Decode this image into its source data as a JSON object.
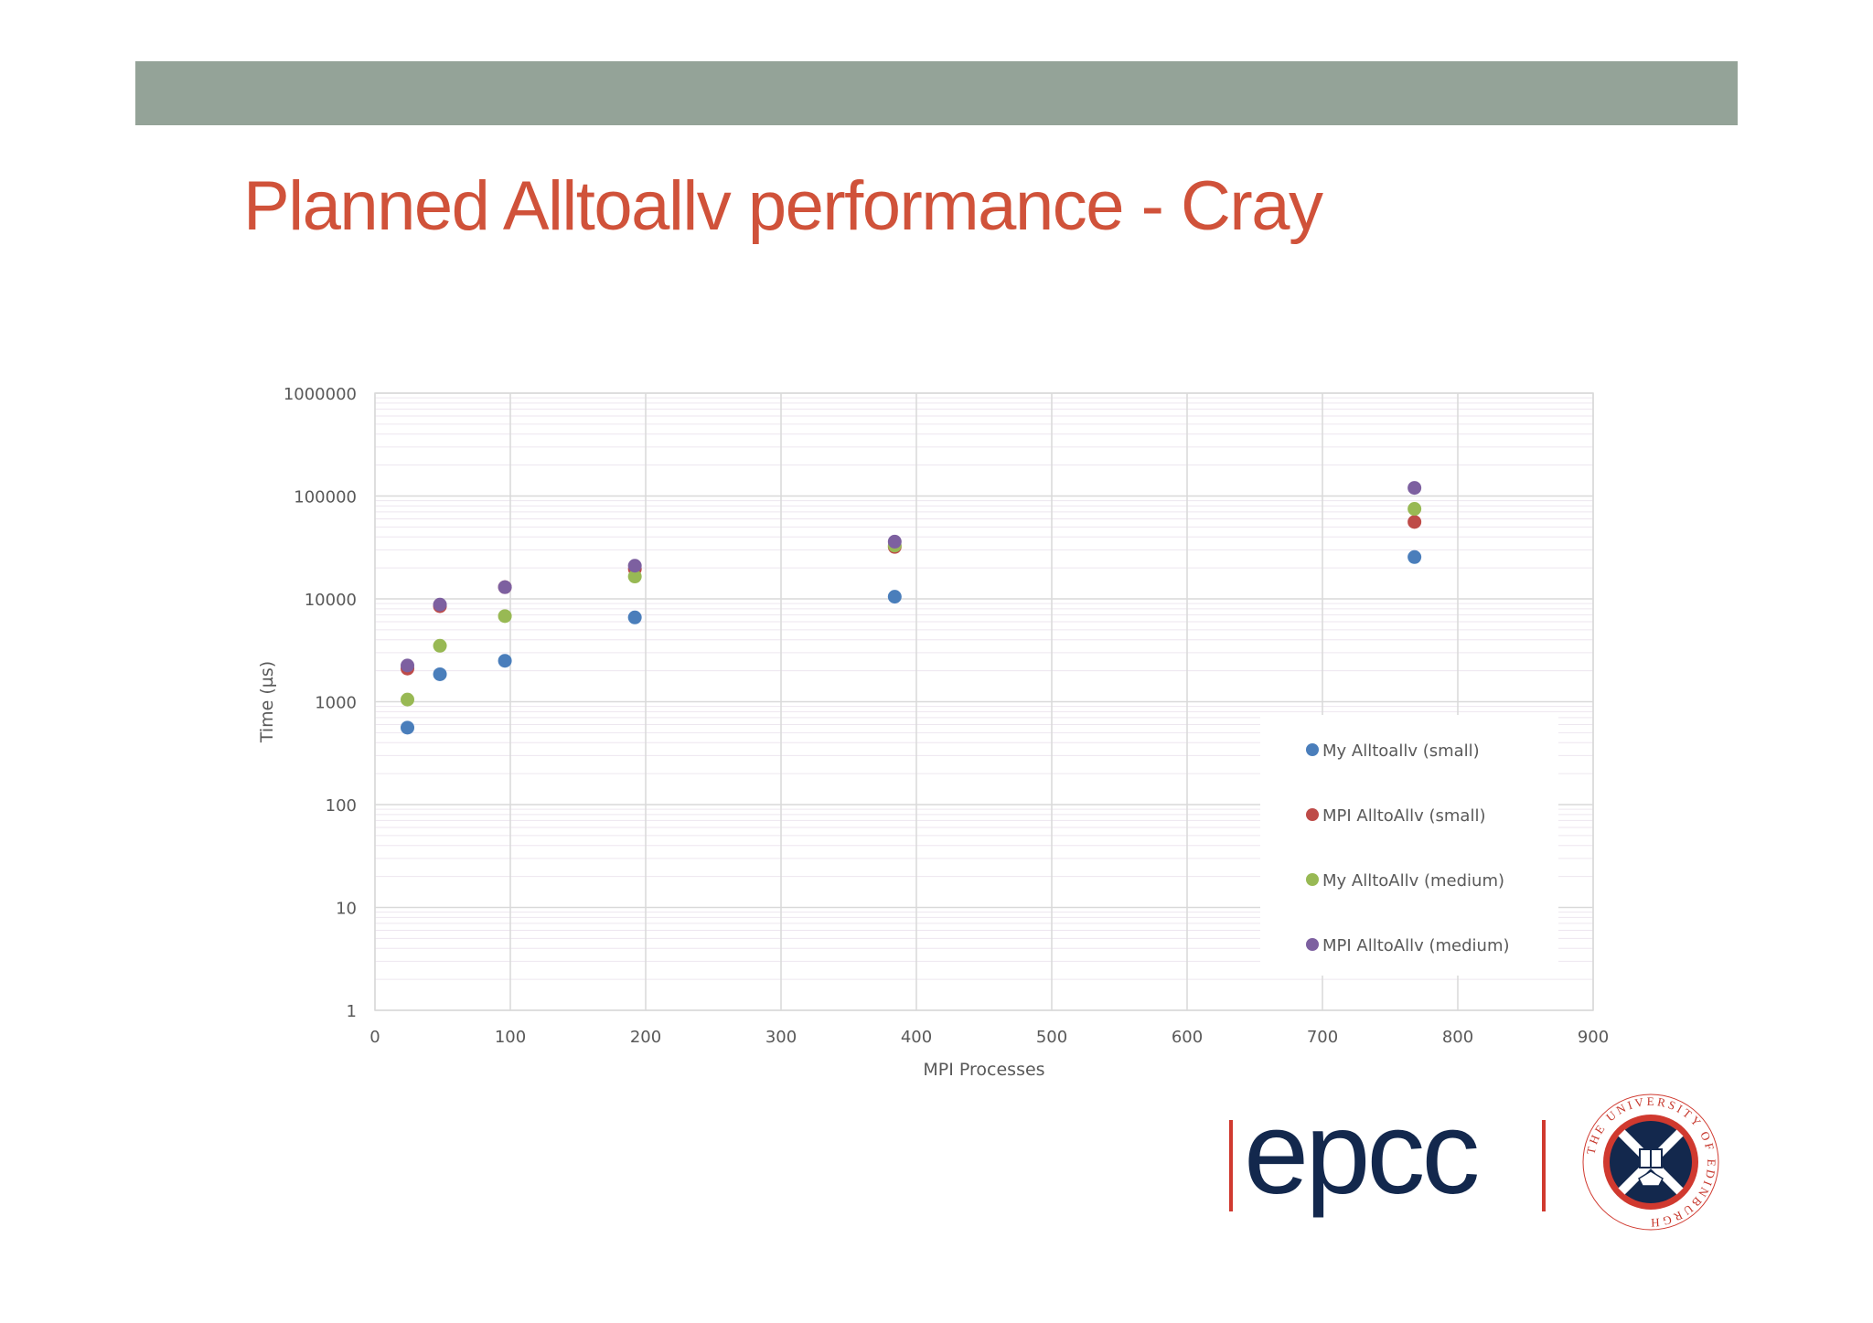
{
  "slide": {
    "title": "Planned Alltoallv performance - Cray",
    "colors": {
      "header_bar": "#94a398",
      "title": "#d0523a"
    }
  },
  "logos": {
    "epcc_text": "epcc",
    "university_seal_text": "THE UNIVERSITY OF EDINBURGH",
    "epcc_color": "#13284d",
    "accent_color": "#d0392f"
  },
  "chart_data": {
    "type": "scatter",
    "xlabel": "MPI Processes",
    "ylabel": "Time (µs)",
    "xlim": [
      0,
      900
    ],
    "ylim": [
      1,
      1000000
    ],
    "yscale": "log",
    "x_ticks": [
      "0",
      "100",
      "200",
      "300",
      "400",
      "500",
      "600",
      "700",
      "800",
      "900"
    ],
    "y_ticks": [
      "1",
      "10",
      "100",
      "1000",
      "10000",
      "100000",
      "1000000"
    ],
    "grid": true,
    "legend_position": "bottom-right",
    "series": [
      {
        "name": "My Alltoallv (small)",
        "color": "#4a7ebb",
        "x": [
          24,
          48,
          96,
          192,
          384,
          768
        ],
        "y": [
          560,
          1850,
          2500,
          6600,
          10500,
          25500
        ]
      },
      {
        "name": "MPI AlltoAllv (small)",
        "color": "#be4b48",
        "x": [
          24,
          48,
          96,
          192,
          384,
          768
        ],
        "y": [
          2100,
          8500,
          13000,
          19500,
          32000,
          56000
        ]
      },
      {
        "name": "My AlltoAllv (medium)",
        "color": "#98b954",
        "x": [
          24,
          48,
          96,
          192,
          384,
          768
        ],
        "y": [
          1050,
          3500,
          6800,
          16500,
          33000,
          75000
        ]
      },
      {
        "name": "MPI AlltoAllv (medium)",
        "color": "#7d60a0",
        "x": [
          24,
          48,
          96,
          192,
          384,
          768
        ],
        "y": [
          2250,
          8800,
          13000,
          21000,
          36000,
          120000
        ]
      }
    ]
  }
}
